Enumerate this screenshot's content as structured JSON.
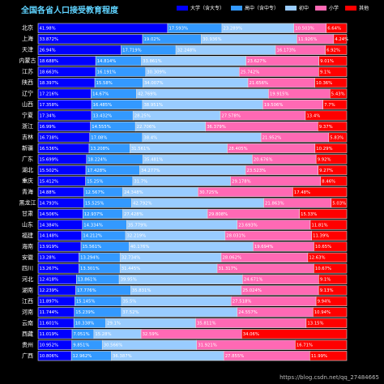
{
  "chart_data": {
    "type": "stacked_bar_horizontal",
    "title": "全国各省人口接受教育程度",
    "categories": [
      "北京",
      "上海",
      "天津",
      "内蒙古",
      "江苏",
      "陕西",
      "辽宁",
      "山西",
      "宁夏",
      "浙江",
      "吉林",
      "新疆",
      "广东",
      "湖北",
      "重庆",
      "青海",
      "黑龙江",
      "甘肃",
      "山东",
      "福建",
      "海南",
      "安徽",
      "四川",
      "河北",
      "湖南",
      "江西",
      "河南",
      "云南",
      "西藏",
      "贵州",
      "广西"
    ],
    "xlim": [
      0,
      100
    ],
    "series": [
      {
        "name": "大学（含大专）",
        "color": "#0000ff",
        "values": [
          41.98,
          33.872,
          26.94,
          18.688,
          18.663,
          18.397,
          17.216,
          17.358,
          17.34,
          16.99,
          16.738,
          16.536,
          15.699,
          15.502,
          15.412,
          14.88,
          14.793,
          14.506,
          14.384,
          14.148,
          13.919,
          13.28,
          13.267,
          12.418,
          12.239,
          11.897,
          11.744,
          11.601,
          11.019,
          10.952,
          10.806
        ],
        "value_labels": [
          "41.98%",
          "33.872%",
          "26.94%",
          "18.688%",
          "18.663%",
          "18.397%",
          "17.216%",
          "17.358%",
          "17.34%",
          "16.99%",
          "16.738%",
          "16.536%",
          "15.699%",
          "15.502%",
          "15.412%",
          "14.88%",
          "14.793%",
          "14.506%",
          "14.384%",
          "14.148%",
          "13.919%",
          "13.28%",
          "13.267%",
          "12.418%",
          "12.239%",
          "11.897%",
          "11.744%",
          "11.601%",
          "11.019%",
          "10.952%",
          "10.806%"
        ]
      },
      {
        "name": "高中（含中专）",
        "color": "#3399ff",
        "values": [
          17.593,
          19.02,
          17.719,
          14.814,
          16.191,
          15.58,
          14.67,
          16.485,
          13.432,
          14.555,
          17.08,
          13.208,
          18.224,
          17.428,
          15.25,
          12.567,
          15.525,
          12.937,
          14.334,
          14.212,
          15.561,
          13.294,
          13.301,
          13.861,
          17.776,
          15.145,
          15.239,
          10.338,
          7.051,
          9.851,
          12.962
        ],
        "value_labels": [
          "17.593%",
          "19.02%",
          "17.719%",
          "14.814%",
          "16.191%",
          "15.58%",
          "14.67%",
          "16.485%",
          "13.432%",
          "14.555%",
          "17.08%",
          "13.208%",
          "18.224%",
          "17.428%",
          "15.25%",
          "12.567%",
          "15.525%",
          "12.937%",
          "14.334%",
          "14.212%",
          "15.561%",
          "13.294%",
          "13.301%",
          "13.861%",
          "17.776%",
          "15.145%",
          "15.239%",
          "10.338%",
          "7.051%",
          "9.851%",
          "12.962%"
        ]
      },
      {
        "name": "初中",
        "color": "#99ccff",
        "values": [
          23.289,
          30.936,
          32.248,
          33.861,
          30.309,
          34.007,
          42.769,
          38.951,
          28.25,
          22.706,
          38.4,
          31.561,
          35.481,
          34.277,
          31.7,
          24.348,
          42.792,
          27.428,
          35.779,
          32.219,
          40.176,
          32.734,
          31.445,
          39.95,
          35.831,
          35.5,
          37.52,
          29.1,
          15.28,
          30.566,
          36.387
        ],
        "value_labels": [
          "23.289%",
          "30.936%",
          "32.248%",
          "33.861%",
          "30.309%",
          "34.007%",
          "42.769%",
          "38.951%",
          "28.25%",
          "22.706%",
          "38.4%",
          "31.561%",
          "35.481%",
          "34.277%",
          "31.7%",
          "24.348%",
          "42.792%",
          "27.428%",
          "35.779%",
          "32.219%",
          "40.176%",
          "32.734%",
          "31.445%",
          "39.95%",
          "35.831%",
          "35.5%",
          "37.52%",
          "29.1%",
          "15.28%",
          "30.566%",
          "36.387%"
        ]
      },
      {
        "name": "小学",
        "color": "#ff69b4",
        "values": [
          10.503,
          11.926,
          16.173,
          23.627,
          25.742,
          21.656,
          19.915,
          19.506,
          27.578,
          36.379,
          21.952,
          28.405,
          20.676,
          23.523,
          29.178,
          30.725,
          21.863,
          29.808,
          23.693,
          28.031,
          19.694,
          28.062,
          31.317,
          24.671,
          25.024,
          27.518,
          24.557,
          35.811,
          32.59,
          31.921,
          27.855
        ],
        "value_labels": [
          "10.503%",
          "11.926%",
          "16.173%",
          "23.627%",
          "25.742%",
          "21.656%",
          "19.915%",
          "19.506%",
          "27.578%",
          "36.379%",
          "21.952%",
          "28.405%",
          "20.676%",
          "23.523%",
          "29.178%",
          "30.725%",
          "21.863%",
          "29.808%",
          "23.693%",
          "28.031%",
          "19.694%",
          "28.062%",
          "31.317%",
          "24.671%",
          "25.024%",
          "27.518%",
          "24.557%",
          "35.811%",
          "32.59%",
          "31.921%",
          "27.855%"
        ]
      },
      {
        "name": "其他",
        "color": "#ff0000",
        "values": [
          6.64,
          4.24,
          6.92,
          9.01,
          9.1,
          10.36,
          5.43,
          7.7,
          13.4,
          9.37,
          5.83,
          10.29,
          9.92,
          9.27,
          8.46,
          17.48,
          5.03,
          15.33,
          11.81,
          11.39,
          10.65,
          12.63,
          10.67,
          9.1,
          9.13,
          9.94,
          10.94,
          13.15,
          34.06,
          16.71,
          11.99
        ],
        "value_labels": [
          "6.64%",
          "4.24%",
          "6.92%",
          "9.01%",
          "9.1%",
          "10.36%",
          "5.43%",
          "7.7%",
          "13.4%",
          "9.37%",
          "5.83%",
          "10.29%",
          "9.92%",
          "9.27%",
          "8.46%",
          "17.48%",
          "5.03%",
          "15.33%",
          "11.81%",
          "11.39%",
          "10.65%",
          "12.63%",
          "10.67%",
          "9.1%",
          "9.13%",
          "9.94%",
          "10.94%",
          "13.15%",
          "34.06%",
          "16.71%",
          "11.99%"
        ]
      }
    ],
    "watermark": "https://blog.csdn.net/qq_27484665"
  }
}
